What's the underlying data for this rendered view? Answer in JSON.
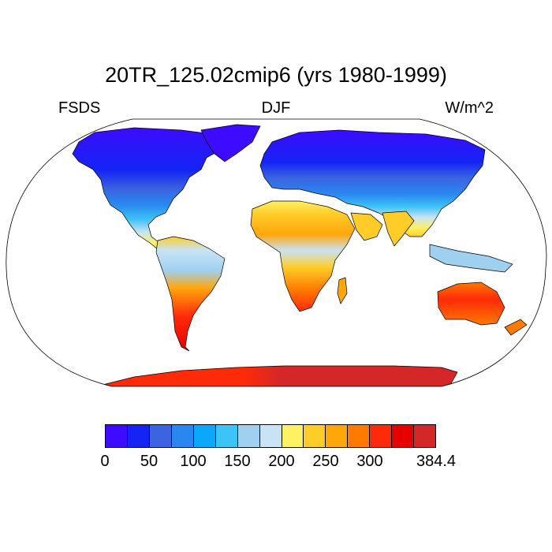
{
  "title": "20TR_125.02cmip6 (yrs 1980-1999)",
  "left_label": "FSDS",
  "center_label": "DJF",
  "right_label": "W/m^2",
  "colorbar": {
    "colors": [
      "#3d0bff",
      "#1424f5",
      "#3b64e0",
      "#2a87f0",
      "#0aa8fa",
      "#3cc3f7",
      "#9fd0ef",
      "#c8e3f5",
      "#fff064",
      "#ffcc28",
      "#ffa60a",
      "#ff7a00",
      "#ff2a0a",
      "#e60000",
      "#d42828"
    ],
    "labels": [
      {
        "text": "0",
        "boundary": 0
      },
      {
        "text": "50",
        "boundary": 2
      },
      {
        "text": "100",
        "boundary": 4
      },
      {
        "text": "150",
        "boundary": 6
      },
      {
        "text": "200",
        "boundary": 8
      },
      {
        "text": "250",
        "boundary": 10
      },
      {
        "text": "300",
        "boundary": 12
      },
      {
        "text": "384.4",
        "boundary": 15
      }
    ]
  }
}
